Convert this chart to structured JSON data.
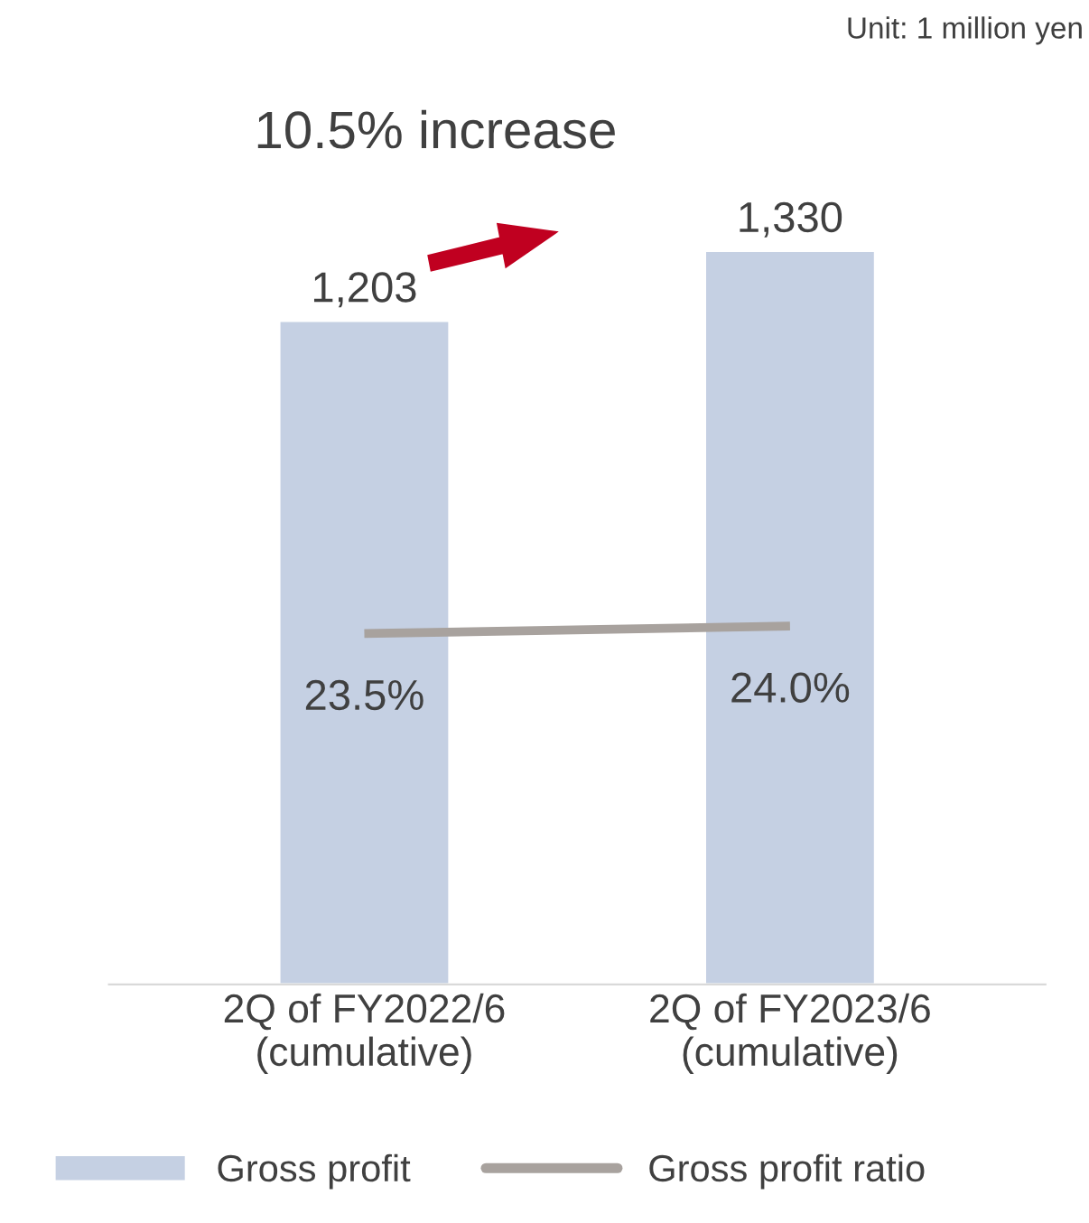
{
  "chart_data": {
    "type": "bar",
    "title": "10.5% increase",
    "categories": [
      "2Q of FY2022/6\n(cumulative)",
      "2Q of FY2023/6\n(cumulative)"
    ],
    "series": [
      {
        "name": "Gross profit",
        "color": "#c5d0e3",
        "values": [
          1203,
          1330
        ],
        "value_labels": [
          "1,203",
          "1,330"
        ]
      },
      {
        "name": "Gross profit ratio",
        "type": "line",
        "axis": "y2",
        "color": "#a8a29e",
        "values": [
          23.5,
          24.0
        ],
        "value_labels": [
          "23.5%",
          "24.0%"
        ],
        "marker": "none"
      }
    ],
    "tick_labels": "x",
    "grid": false,
    "legend": "bottom",
    "annotations": [
      "Unit: 1 million yen"
    ]
  }
}
